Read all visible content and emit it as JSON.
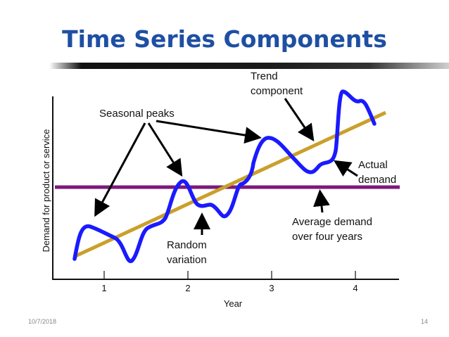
{
  "slide": {
    "title": "Time Series Components",
    "date": "10/7/2018",
    "page_number": "14"
  },
  "chart_data": {
    "type": "line",
    "xlabel": "Year",
    "ylabel": "Demand for product or service",
    "x_ticks": [
      "1",
      "2",
      "3",
      "4"
    ],
    "annotations": {
      "seasonal_peaks": "Seasonal peaks",
      "trend_line1": "Trend",
      "trend_line2": "component",
      "actual_line1": "Actual",
      "actual_line2": "demand",
      "average_line1": "Average demand",
      "average_line2": "over four years",
      "random_line1": "Random",
      "random_line2": "variation"
    },
    "colors": {
      "actual_demand": "#1a1aff",
      "trend": "#c9a02a",
      "average": "#7b1a7b",
      "title": "#1e4fa3"
    }
  }
}
